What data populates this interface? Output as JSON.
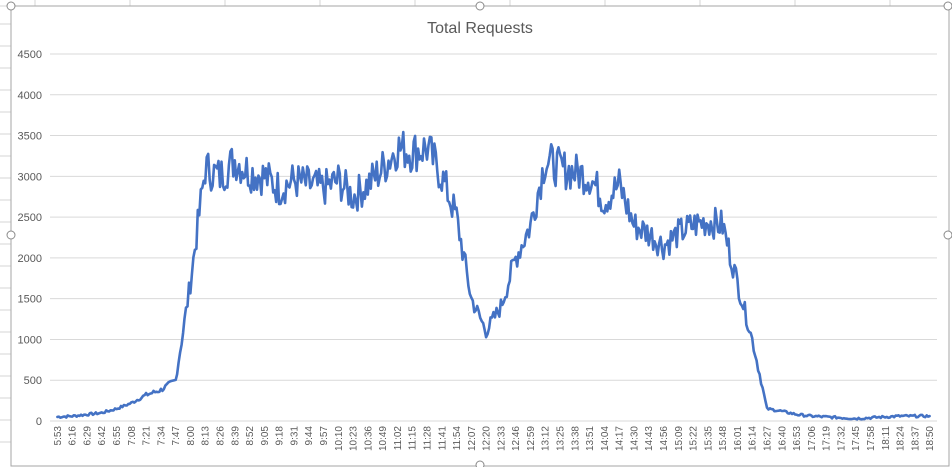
{
  "chart_data": {
    "type": "line",
    "title": "Total Requests",
    "xlabel": "",
    "ylabel": "",
    "ylim": [
      0,
      4500
    ],
    "yticks": [
      0,
      500,
      1000,
      1500,
      2000,
      2500,
      3000,
      3500,
      4000,
      4500
    ],
    "grid": true,
    "legend": "none",
    "x_tick_labels": [
      "5:53",
      "6:16",
      "6:29",
      "6:42",
      "6:55",
      "7:08",
      "7:21",
      "7:34",
      "7:47",
      "8:00",
      "8:13",
      "8:26",
      "8:39",
      "8:52",
      "9:05",
      "9:18",
      "9:31",
      "9:44",
      "9:57",
      "10:10",
      "10:23",
      "10:36",
      "10:49",
      "11:02",
      "11:15",
      "11:28",
      "11:41",
      "11:54",
      "12:07",
      "12:20",
      "12:33",
      "12:46",
      "12:59",
      "13:12",
      "13:25",
      "13:38",
      "13:51",
      "14:04",
      "14:17",
      "14:30",
      "14:43",
      "14:56",
      "15:09",
      "15:22",
      "15:35",
      "15:48",
      "16:01",
      "16:14",
      "16:27",
      "16:40",
      "16:53",
      "17:06",
      "17:19",
      "17:32",
      "17:45",
      "17:58",
      "18:11",
      "18:24",
      "18:37",
      "18:50"
    ],
    "series": [
      {
        "color": "#4472c4",
        "x": [
          "5:53",
          "6:16",
          "6:29",
          "6:42",
          "6:55",
          "7:08",
          "7:21",
          "7:34",
          "7:47",
          "8:00",
          "8:13",
          "8:26",
          "8:39",
          "8:52",
          "9:05",
          "9:18",
          "9:31",
          "9:44",
          "9:57",
          "10:10",
          "10:23",
          "10:36",
          "10:49",
          "11:02",
          "11:15",
          "11:28",
          "11:41",
          "11:54",
          "12:07",
          "12:20",
          "12:33",
          "12:46",
          "12:59",
          "13:12",
          "13:25",
          "13:38",
          "13:51",
          "14:04",
          "14:17",
          "14:30",
          "14:43",
          "14:56",
          "15:09",
          "15:22",
          "15:35",
          "15:48",
          "16:01",
          "16:14",
          "16:27",
          "16:40",
          "16:53",
          "17:06",
          "17:19",
          "17:32",
          "17:45",
          "17:58",
          "18:11",
          "18:24",
          "18:37",
          "18:50"
        ],
        "values": [
          50,
          60,
          80,
          100,
          150,
          220,
          320,
          380,
          500,
          1700,
          3100,
          3000,
          3200,
          3050,
          3000,
          2850,
          2950,
          2900,
          2850,
          2950,
          2750,
          2900,
          3100,
          3350,
          3300,
          3350,
          3000,
          2500,
          1500,
          1100,
          1400,
          2000,
          2400,
          3200,
          3100,
          3050,
          3000,
          2700,
          2900,
          2400,
          2300,
          2150,
          2300,
          2400,
          2450,
          2400,
          1700,
          1000,
          150,
          120,
          80,
          60,
          50,
          40,
          30,
          40,
          50,
          60,
          60,
          60
        ]
      }
    ]
  }
}
